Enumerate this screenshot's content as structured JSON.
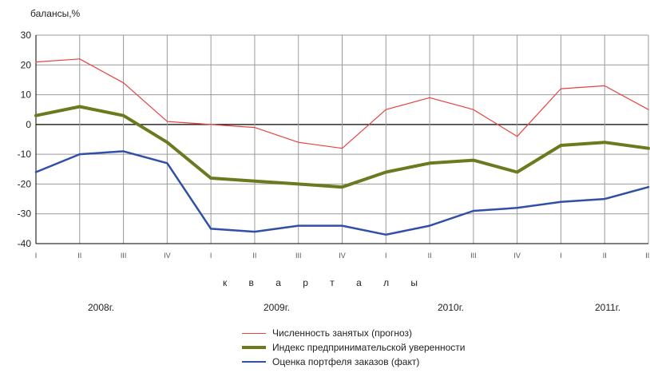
{
  "chart_data": {
    "type": "line",
    "ylabel": "балансы,%",
    "xlabel": "к в а р т а л ы",
    "ylim": [
      -40,
      30
    ],
    "yticks": [
      30,
      20,
      10,
      0,
      -10,
      -20,
      -30,
      -40
    ],
    "grid": true,
    "categories": [
      "I",
      "II",
      "III",
      "IV",
      "I",
      "II",
      "III",
      "IV",
      "I",
      "II",
      "III",
      "IV",
      "I",
      "II",
      "III"
    ],
    "years": [
      "2008г.",
      "2009г.",
      "2010г.",
      "2011г."
    ],
    "legend_position": "bottom",
    "series": [
      {
        "name": "Численность занятых (прогноз)",
        "color": "#e8423f",
        "width": 1.2,
        "values": [
          21,
          22,
          14,
          1,
          0,
          -1,
          -6,
          -8,
          5,
          9,
          5,
          -4,
          12,
          13,
          5
        ]
      },
      {
        "name": "Индекс предпринимательской уверенности",
        "color": "#6b7a1f",
        "width": 4,
        "values": [
          3,
          6,
          3,
          -6,
          -18,
          -19,
          -20,
          -21,
          -16,
          -13,
          -12,
          -16,
          -7,
          -6,
          -8
        ]
      },
      {
        "name": "Оценка портфеля заказов (факт)",
        "color": "#3050a8",
        "width": 2.5,
        "values": [
          -16,
          -10,
          -9,
          -13,
          -35,
          -36,
          -34,
          -34,
          -37,
          -34,
          -29,
          -28,
          -26,
          -25,
          -21
        ]
      }
    ]
  }
}
